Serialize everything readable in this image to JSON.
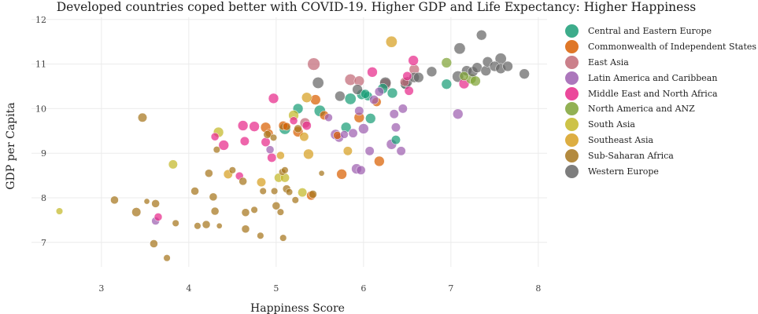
{
  "chart_data": {
    "type": "scatter",
    "title": "Developed countries coped better with COVID-19. Higher GDP and Life Expectancy: Higher Happiness",
    "xlabel": "Happiness Score",
    "ylabel": "GDP per Capita",
    "xlim": [
      2.2,
      8.1
    ],
    "ylim": [
      6.45,
      12.05
    ],
    "xticks": [
      3,
      4,
      5,
      6,
      7,
      8
    ],
    "yticks": [
      7,
      8,
      9,
      10,
      11,
      12
    ],
    "grid": true,
    "legend_position": "right",
    "size_note": "marker size varies per country",
    "series": [
      {
        "name": "Central and Eastern Europe",
        "color": "#1b9e77",
        "points": [
          [
            5.1,
            9.55,
            10
          ],
          [
            5.25,
            10.0,
            9
          ],
          [
            5.5,
            9.95,
            10
          ],
          [
            5.8,
            9.58,
            9
          ],
          [
            5.85,
            10.22,
            10
          ],
          [
            5.98,
            10.32,
            9
          ],
          [
            6.05,
            10.28,
            8
          ],
          [
            6.08,
            9.78,
            9
          ],
          [
            6.22,
            10.45,
            9
          ],
          [
            6.33,
            10.35,
            9
          ],
          [
            6.37,
            9.3,
            8
          ],
          [
            6.48,
            10.55,
            9
          ],
          [
            6.95,
            10.55,
            9
          ],
          [
            6.02,
            10.33,
            8
          ]
        ]
      },
      {
        "name": "Commonwealth of Independent States",
        "color": "#d95f02",
        "points": [
          [
            4.88,
            9.58,
            9
          ],
          [
            4.92,
            9.45,
            7
          ],
          [
            5.08,
            9.62,
            8
          ],
          [
            5.12,
            9.6,
            7
          ],
          [
            5.25,
            9.48,
            9
          ],
          [
            5.4,
            8.05,
            8
          ],
          [
            5.45,
            10.2,
            9
          ],
          [
            5.55,
            9.85,
            8
          ],
          [
            5.7,
            9.4,
            7
          ],
          [
            5.75,
            8.53,
            9
          ],
          [
            5.95,
            9.8,
            9
          ],
          [
            6.18,
            8.82,
            9
          ],
          [
            6.15,
            10.15,
            8
          ]
        ]
      },
      {
        "name": "East Asia",
        "color": "#c26a77",
        "points": [
          [
            5.43,
            11.0,
            11
          ],
          [
            5.33,
            9.68,
            9
          ],
          [
            5.85,
            10.65,
            10
          ],
          [
            5.95,
            10.62,
            9
          ],
          [
            6.25,
            10.55,
            10
          ],
          [
            6.58,
            10.88,
            9
          ],
          [
            6.47,
            10.6,
            8
          ]
        ]
      },
      {
        "name": "Latin America and Caribbean",
        "color": "#9e5fb0",
        "points": [
          [
            3.62,
            7.48,
            7
          ],
          [
            4.93,
            9.08,
            7
          ],
          [
            5.6,
            9.8,
            7
          ],
          [
            5.68,
            9.42,
            9
          ],
          [
            5.72,
            9.35,
            8
          ],
          [
            5.88,
            9.45,
            8
          ],
          [
            5.92,
            8.65,
            9
          ],
          [
            5.95,
            9.95,
            8
          ],
          [
            5.97,
            8.62,
            8
          ],
          [
            6.0,
            9.55,
            9
          ],
          [
            6.07,
            9.05,
            8
          ],
          [
            6.12,
            10.2,
            8
          ],
          [
            6.18,
            10.38,
            8
          ],
          [
            6.32,
            9.2,
            9
          ],
          [
            6.35,
            9.88,
            8
          ],
          [
            6.37,
            9.58,
            8
          ],
          [
            6.43,
            9.05,
            8
          ],
          [
            6.45,
            10.0,
            8
          ],
          [
            7.08,
            9.88,
            9
          ],
          [
            5.78,
            9.42,
            7
          ]
        ]
      },
      {
        "name": "Middle East and North Africa",
        "color": "#e7298a",
        "points": [
          [
            3.65,
            7.57,
            7
          ],
          [
            4.3,
            9.37,
            7
          ],
          [
            4.4,
            9.18,
            9
          ],
          [
            4.58,
            8.49,
            7
          ],
          [
            4.62,
            9.62,
            9
          ],
          [
            4.64,
            9.27,
            8
          ],
          [
            4.75,
            9.6,
            9
          ],
          [
            4.88,
            9.25,
            8
          ],
          [
            4.95,
            8.9,
            8
          ],
          [
            4.97,
            10.23,
            9
          ],
          [
            5.2,
            9.73,
            7
          ],
          [
            5.35,
            9.62,
            8
          ],
          [
            6.1,
            10.82,
            9
          ],
          [
            6.5,
            10.73,
            8
          ],
          [
            6.57,
            11.08,
            9
          ],
          [
            7.15,
            10.56,
            9
          ],
          [
            6.52,
            10.4,
            8
          ]
        ]
      },
      {
        "name": "North America and ANZ",
        "color": "#7fa336",
        "points": [
          [
            6.95,
            11.03,
            9
          ],
          [
            7.15,
            10.73,
            8
          ],
          [
            7.23,
            10.67,
            9
          ],
          [
            7.28,
            10.62,
            9
          ]
        ]
      },
      {
        "name": "South Asia",
        "color": "#c4b928",
        "points": [
          [
            2.52,
            7.7,
            6
          ],
          [
            3.82,
            8.75,
            8
          ],
          [
            4.34,
            9.47,
            9
          ],
          [
            5.03,
            8.45,
            8
          ],
          [
            5.1,
            8.45,
            8
          ],
          [
            5.2,
            9.85,
            9
          ],
          [
            5.3,
            8.12,
            8
          ]
        ]
      },
      {
        "name": "Southeast Asia",
        "color": "#d7a021",
        "points": [
          [
            4.45,
            8.53,
            8
          ],
          [
            4.83,
            8.35,
            8
          ],
          [
            5.05,
            8.95,
            7
          ],
          [
            5.32,
            9.37,
            8
          ],
          [
            5.35,
            10.25,
            9
          ],
          [
            5.37,
            8.98,
            9
          ],
          [
            5.82,
            9.05,
            8
          ],
          [
            6.32,
            11.5,
            10
          ]
        ]
      },
      {
        "name": "Sub-Saharan Africa",
        "color": "#a6761d",
        "points": [
          [
            3.15,
            7.95,
            7
          ],
          [
            3.47,
            9.8,
            8
          ],
          [
            3.4,
            7.68,
            8
          ],
          [
            3.52,
            7.92,
            5
          ],
          [
            3.6,
            6.97,
            7
          ],
          [
            3.62,
            7.87,
            7
          ],
          [
            3.75,
            6.65,
            6
          ],
          [
            3.85,
            7.43,
            6
          ],
          [
            4.07,
            8.15,
            7
          ],
          [
            4.1,
            7.37,
            6
          ],
          [
            4.23,
            8.55,
            7
          ],
          [
            4.2,
            7.4,
            7
          ],
          [
            4.28,
            8.02,
            7
          ],
          [
            4.3,
            7.7,
            7
          ],
          [
            4.32,
            9.08,
            6
          ],
          [
            4.35,
            7.37,
            5
          ],
          [
            4.5,
            8.62,
            6
          ],
          [
            4.62,
            8.37,
            7
          ],
          [
            4.65,
            7.3,
            7
          ],
          [
            4.65,
            7.67,
            7
          ],
          [
            4.75,
            7.73,
            6
          ],
          [
            4.82,
            7.15,
            6
          ],
          [
            4.85,
            8.15,
            6
          ],
          [
            4.9,
            9.42,
            7
          ],
          [
            4.97,
            9.35,
            6
          ],
          [
            4.98,
            8.15,
            6
          ],
          [
            5.0,
            7.82,
            7
          ],
          [
            5.05,
            7.68,
            6
          ],
          [
            5.07,
            8.58,
            6
          ],
          [
            5.1,
            8.62,
            6
          ],
          [
            5.08,
            7.1,
            6
          ],
          [
            5.12,
            8.2,
            7
          ],
          [
            5.15,
            8.13,
            6
          ],
          [
            5.22,
            7.95,
            6
          ],
          [
            5.25,
            9.55,
            7
          ],
          [
            5.42,
            8.08,
            7
          ],
          [
            5.52,
            8.55,
            5
          ]
        ]
      },
      {
        "name": "Western Europe",
        "color": "#666666",
        "points": [
          [
            5.48,
            10.58,
            10
          ],
          [
            5.73,
            10.28,
            9
          ],
          [
            5.93,
            10.43,
            9
          ],
          [
            6.25,
            10.58,
            10
          ],
          [
            6.48,
            10.55,
            9
          ],
          [
            6.5,
            10.6,
            9
          ],
          [
            6.58,
            10.7,
            9
          ],
          [
            6.63,
            10.7,
            9
          ],
          [
            6.78,
            10.83,
            9
          ],
          [
            7.08,
            10.72,
            10
          ],
          [
            7.1,
            11.35,
            10
          ],
          [
            7.18,
            10.85,
            9
          ],
          [
            7.25,
            10.83,
            9
          ],
          [
            7.3,
            10.92,
            9
          ],
          [
            7.35,
            11.65,
            9
          ],
          [
            7.4,
            10.85,
            9
          ],
          [
            7.42,
            11.05,
            9
          ],
          [
            7.5,
            10.95,
            9
          ],
          [
            7.57,
            10.9,
            9
          ],
          [
            7.57,
            11.12,
            10
          ],
          [
            7.65,
            10.95,
            9
          ],
          [
            7.84,
            10.78,
            9
          ]
        ]
      }
    ]
  }
}
